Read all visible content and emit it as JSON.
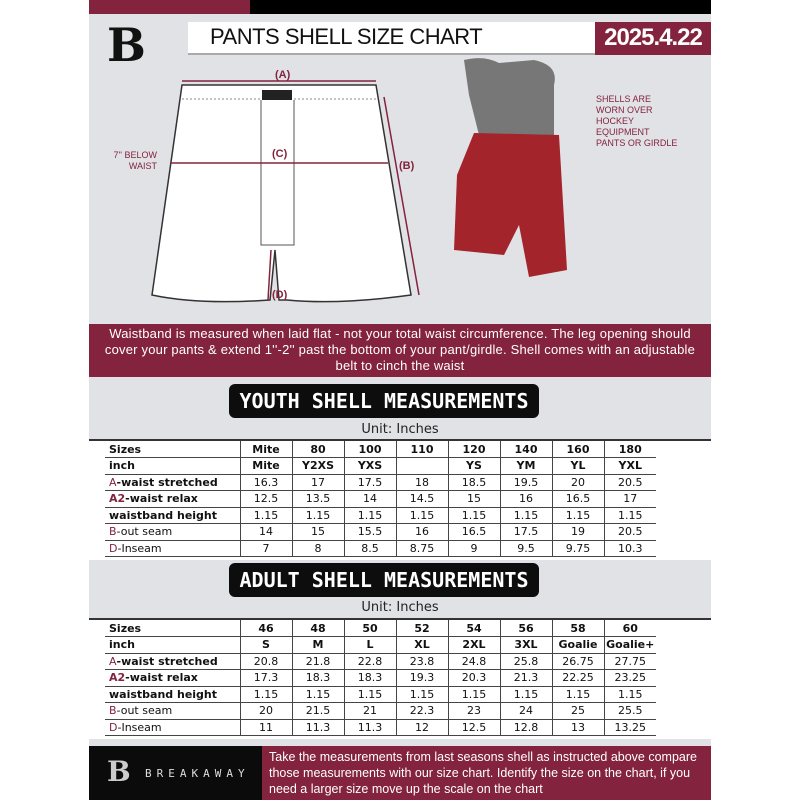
{
  "header": {
    "title": "PANTS SHELL SIZE CHART",
    "date": "2025.4.22",
    "logo": "B"
  },
  "diagram": {
    "label_a": "(A)",
    "label_b": "(B)",
    "label_c": "(C)",
    "label_d": "(D)",
    "below_waist": "7'' BELOW WAIST",
    "shell_note": "SHELLS ARE WORN OVER HOCKEY EQUIPMENT PANTS OR GIRDLE"
  },
  "banner": {
    "text": "Waistband is measured when laid flat - not your total waist circumference. The leg opening should cover your pants & extend 1''-2'' past the bottom of your pant/girdle. Shell comes with an adjustable belt to cinch the waist"
  },
  "youth": {
    "title": "YOUTH SHELL MEASUREMENTS",
    "unit": "Unit: Inches",
    "rows": [
      {
        "prefix": "",
        "label": "Sizes",
        "values": [
          "Mite",
          "80",
          "100",
          "110",
          "120",
          "140",
          "160",
          "180"
        ]
      },
      {
        "prefix": "",
        "label": "inch",
        "values": [
          "Mite",
          "Y2XS",
          "YXS",
          "",
          "YS",
          "YM",
          "YL",
          "YXL"
        ]
      },
      {
        "prefix": "A",
        "label": "-waist stretched",
        "values": [
          "16.3",
          "17",
          "17.5",
          "18",
          "18.5",
          "19.5",
          "20",
          "20.5"
        ]
      },
      {
        "prefix": "A2",
        "label": "-waist relax",
        "values": [
          "12.5",
          "13.5",
          "14",
          "14.5",
          "15",
          "16",
          "16.5",
          "17"
        ]
      },
      {
        "prefix": "",
        "label": "waistband height",
        "values": [
          "1.15",
          "1.15",
          "1.15",
          "1.15",
          "1.15",
          "1.15",
          "1.15",
          "1.15"
        ]
      },
      {
        "prefix": "B",
        "label": "-out seam",
        "values": [
          "14",
          "15",
          "15.5",
          "16",
          "16.5",
          "17.5",
          "19",
          "20.5"
        ]
      },
      {
        "prefix": "D",
        "label": "-Inseam",
        "values": [
          "7",
          "8",
          "8.5",
          "8.75",
          "9",
          "9.5",
          "9.75",
          "10.3"
        ]
      }
    ]
  },
  "adult": {
    "title": "ADULT SHELL MEASUREMENTS",
    "unit": "Unit: Inches",
    "rows": [
      {
        "prefix": "",
        "label": "Sizes",
        "values": [
          "46",
          "48",
          "50",
          "52",
          "54",
          "56",
          "58",
          "60"
        ]
      },
      {
        "prefix": "",
        "label": "inch",
        "values": [
          "S",
          "M",
          "L",
          "XL",
          "2XL",
          "3XL",
          "Goalie",
          "Goalie+"
        ]
      },
      {
        "prefix": "A",
        "label": "-waist stretched",
        "values": [
          "20.8",
          "21.8",
          "22.8",
          "23.8",
          "24.8",
          "25.8",
          "26.75",
          "27.75"
        ]
      },
      {
        "prefix": "A2",
        "label": "-waist relax",
        "values": [
          "17.3",
          "18.3",
          "18.3",
          "19.3",
          "20.3",
          "21.3",
          "22.25",
          "23.25"
        ]
      },
      {
        "prefix": "",
        "label": "waistband height",
        "values": [
          "1.15",
          "1.15",
          "1.15",
          "1.15",
          "1.15",
          "1.15",
          "1.15",
          "1.15"
        ]
      },
      {
        "prefix": "B",
        "label": "-out seam",
        "values": [
          "20",
          "21.5",
          "21",
          "22.3",
          "23",
          "24",
          "25",
          "25.5"
        ]
      },
      {
        "prefix": "D",
        "label": "-Inseam",
        "values": [
          "11",
          "11.3",
          "11.3",
          "12",
          "12.5",
          "12.8",
          "13",
          "13.25"
        ]
      }
    ]
  },
  "footer": {
    "brand": "BREAKAWAY",
    "logo": "B",
    "text": "Take the measurements from last seasons shell as instructed above compare those measurements  with our size chart. Identify the size on the chart, if you need a larger size move up the scale on the chart"
  },
  "colors": {
    "accent": "#83233d",
    "background": "#e1e2e6",
    "dark": "#0d0d0d"
  }
}
